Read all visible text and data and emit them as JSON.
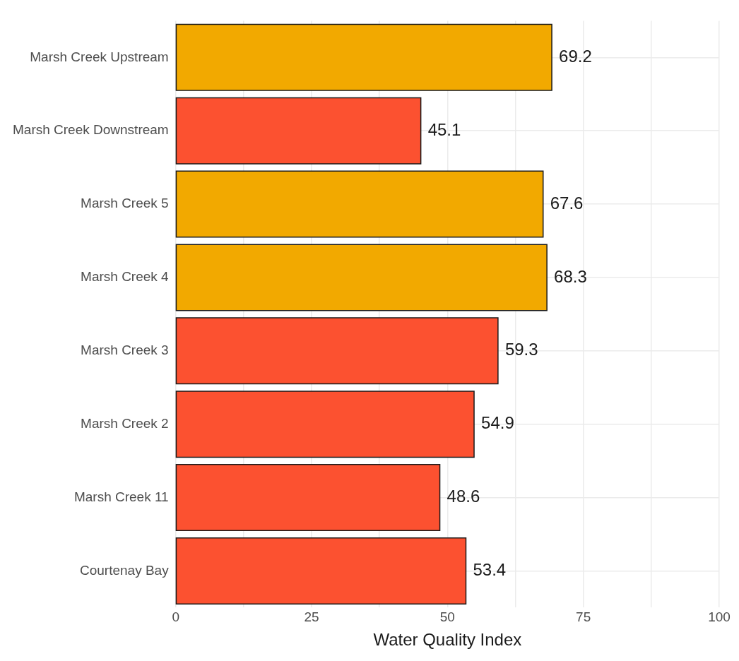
{
  "chart_data": {
    "type": "bar",
    "orientation": "horizontal",
    "xlabel": "Water Quality Index",
    "categories": [
      "Marsh Creek Upstream",
      "Marsh Creek Downstream",
      "Marsh Creek 5",
      "Marsh Creek 4",
      "Marsh Creek 3",
      "Marsh Creek 2",
      "Marsh Creek 11",
      "Courtenay Bay"
    ],
    "values": [
      69.2,
      45.1,
      67.6,
      68.3,
      59.3,
      54.9,
      48.6,
      53.4
    ],
    "colors": [
      "#f2a900",
      "#fc5130",
      "#f2a900",
      "#f2a900",
      "#fc5130",
      "#fc5130",
      "#fc5130",
      "#fc5130"
    ],
    "xlim": [
      0,
      100
    ],
    "xticks": [
      0,
      {
        "value": 12.5,
        "label": null
      },
      25,
      {
        "value": 37.5,
        "label": null
      },
      50,
      {
        "value": 62.5,
        "label": null
      },
      75,
      {
        "value": 87.5,
        "label": null
      },
      100
    ],
    "grid": true,
    "legend": false,
    "data_labels": true
  }
}
